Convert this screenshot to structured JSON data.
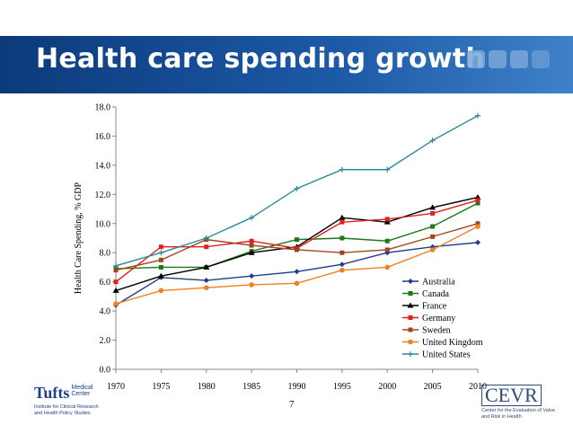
{
  "slide": {
    "title": "Health care spending growth",
    "page_number": "7"
  },
  "logos": {
    "left_name": "Tufts",
    "left_name_suffix": "Medical Center",
    "left_subtitle": "Institute for Clinical Research and Health Policy Studies",
    "right_name": "CEVR",
    "right_subtitle": "Center for the Evaluation of Value and Risk in Health"
  },
  "colors": {
    "banner": "#1d5aa8"
  },
  "chart_data": {
    "type": "line",
    "title": "",
    "xlabel": "",
    "ylabel": "Health Care Spending, % GDP",
    "x": [
      1970,
      1975,
      1980,
      1985,
      1990,
      1995,
      2000,
      2005,
      2010
    ],
    "x_tick_labels": [
      "1970",
      "1975",
      "1980",
      "1985",
      "1990",
      "1995",
      "2000",
      "2005",
      "2010"
    ],
    "ylim": [
      0,
      18
    ],
    "y_tick_labels": [
      "0.0",
      "2.0",
      "4.0",
      "6.0",
      "8.0",
      "10.0",
      "12.0",
      "14.0",
      "16.0",
      "18.0"
    ],
    "grid": false,
    "legend_position": "bottom-right",
    "series": [
      {
        "name": "Australia",
        "color": "#1f3c88",
        "marker": "diamond",
        "values": [
          4.4,
          6.3,
          6.1,
          6.4,
          6.7,
          7.2,
          8.0,
          8.4,
          8.7
        ]
      },
      {
        "name": "Canada",
        "color": "#1a7a1a",
        "marker": "square",
        "values": [
          6.9,
          7.0,
          7.0,
          8.1,
          8.9,
          9.0,
          8.8,
          9.8,
          11.4
        ]
      },
      {
        "name": "France",
        "color": "#000000",
        "marker": "triangle",
        "values": [
          5.4,
          6.4,
          7.0,
          8.0,
          8.4,
          10.4,
          10.1,
          11.1,
          11.8
        ]
      },
      {
        "name": "Germany",
        "color": "#e02020",
        "marker": "square",
        "values": [
          6.0,
          8.4,
          8.4,
          8.8,
          8.3,
          10.1,
          10.3,
          10.7,
          11.6
        ]
      },
      {
        "name": "Sweden",
        "color": "#a0461a",
        "marker": "square",
        "values": [
          6.8,
          7.5,
          8.9,
          8.5,
          8.2,
          8.0,
          8.2,
          9.1,
          10.0
        ]
      },
      {
        "name": "United Kingdom",
        "color": "#f08020",
        "marker": "circle",
        "values": [
          4.5,
          5.4,
          5.6,
          5.8,
          5.9,
          6.8,
          7.0,
          8.2,
          9.8
        ]
      },
      {
        "name": "United States",
        "color": "#2a8a9a",
        "marker": "plus",
        "values": [
          7.1,
          8.0,
          9.0,
          10.4,
          12.4,
          13.7,
          13.7,
          15.7,
          17.4
        ]
      }
    ]
  }
}
